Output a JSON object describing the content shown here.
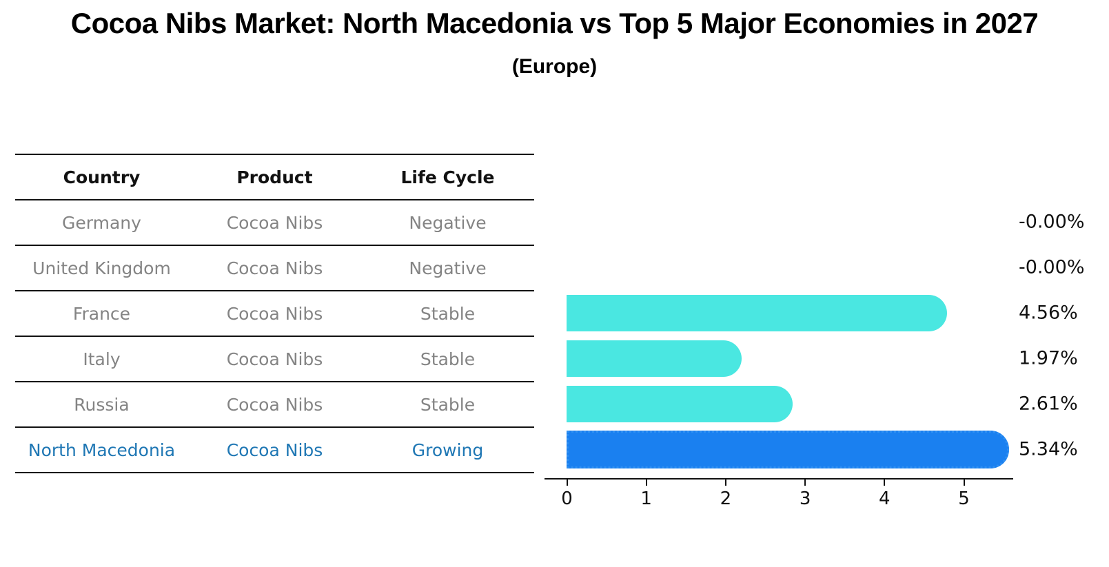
{
  "title": "Cocoa Nibs Market: North Macedonia vs Top 5 Major Economies in 2027",
  "subtitle": "(Europe)",
  "table": {
    "headers": [
      "Country",
      "Product",
      "Life Cycle"
    ],
    "rows": [
      {
        "country": "Germany",
        "product": "Cocoa Nibs",
        "life_cycle": "Negative",
        "highlight": false
      },
      {
        "country": "United Kingdom",
        "product": "Cocoa Nibs",
        "life_cycle": "Negative",
        "highlight": false
      },
      {
        "country": "France",
        "product": "Cocoa Nibs",
        "life_cycle": "Stable",
        "highlight": false
      },
      {
        "country": "Italy",
        "product": "Cocoa Nibs",
        "life_cycle": "Stable",
        "highlight": false
      },
      {
        "country": "Russia",
        "product": "Cocoa Nibs",
        "life_cycle": "Stable",
        "highlight": false
      },
      {
        "country": "North Macedonia",
        "product": "Cocoa Nibs",
        "life_cycle": "Growing",
        "highlight": true
      }
    ],
    "colors": {
      "line": "#111111",
      "header_text": "#111111",
      "row_text": "#848484",
      "highlight_text": "#1f77b4"
    }
  },
  "chart_data": {
    "type": "bar",
    "orientation": "horizontal",
    "title": "Cocoa Nibs Market: North Macedonia vs Top 5 Major Economies in 2027 (Europe)",
    "categories": [
      "Germany",
      "United Kingdom",
      "France",
      "Italy",
      "Russia",
      "North Macedonia"
    ],
    "values": [
      -0.0,
      -0.0,
      4.56,
      1.97,
      2.61,
      5.34
    ],
    "value_labels": [
      "-0.00%",
      "-0.00%",
      "4.56%",
      "1.97%",
      "2.61%",
      "5.34%"
    ],
    "xticks": [
      0,
      1,
      2,
      3,
      4,
      5
    ],
    "xlim": [
      0,
      5.6
    ],
    "grid": false,
    "legend": false,
    "highlight_index": 5,
    "colors": {
      "bar": "#4ae7e1",
      "highlight_bar": "#1a80f0",
      "highlight_border": "#2f8ff2",
      "axis": "#111111",
      "label_text": "#111111"
    }
  }
}
